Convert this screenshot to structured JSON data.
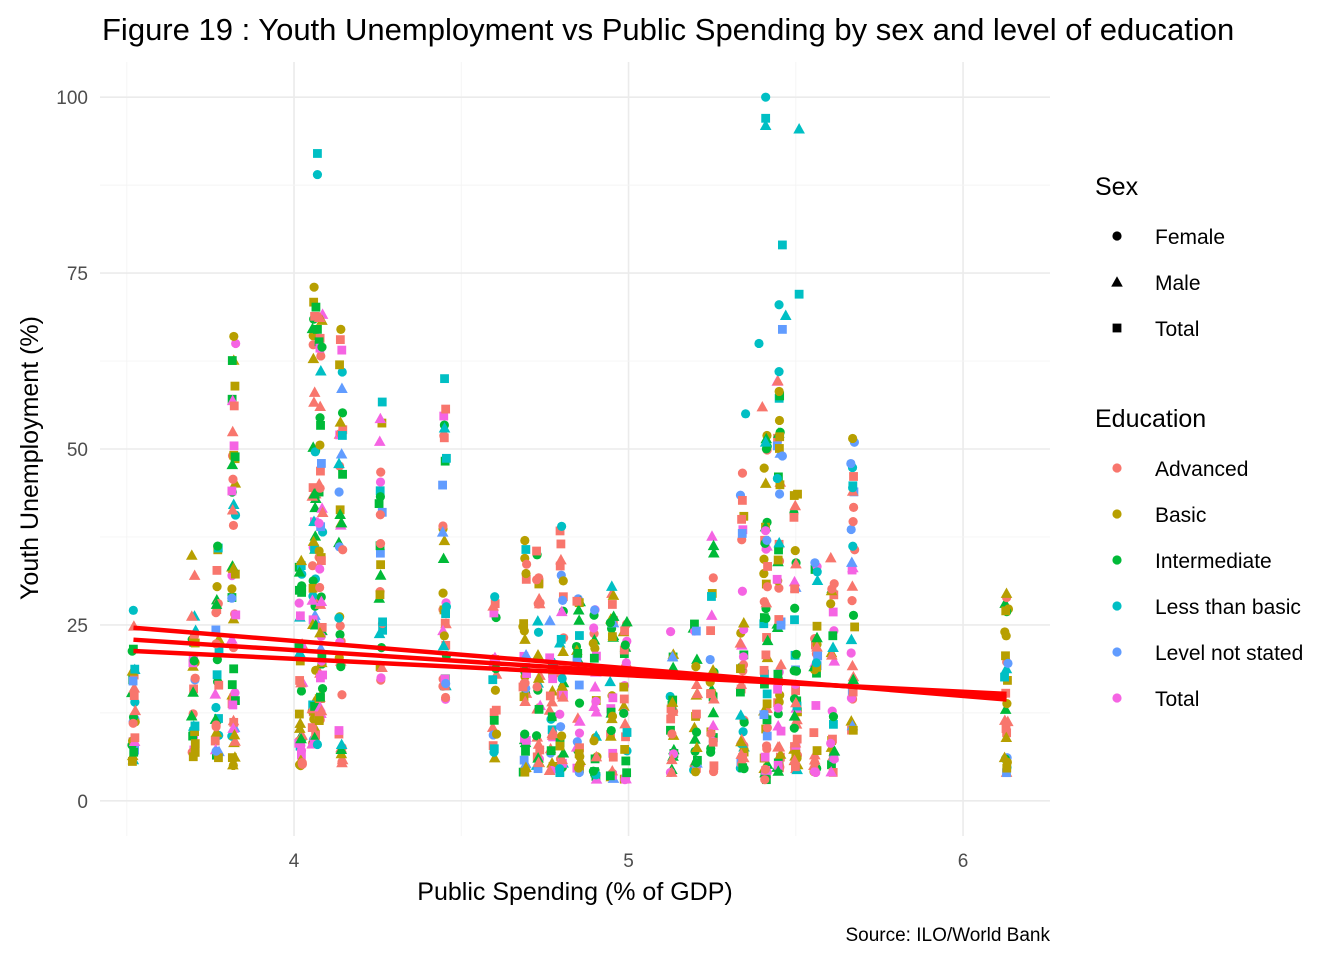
{
  "chart_data": {
    "type": "scatter",
    "title": "Figure 19 : Youth Unemployment vs Public Spending by sex and level of education",
    "xlabel": "Public Spending (% of GDP)",
    "ylabel": "Youth Unemployment (%)",
    "caption": "Source: ILO/World Bank",
    "xlim": [
      3.42,
      6.26
    ],
    "ylim": [
      -5,
      105
    ],
    "x_ticks": [
      4,
      5,
      6
    ],
    "y_ticks": [
      0,
      25,
      50,
      75,
      100
    ],
    "grid": true,
    "legend_placement": "right",
    "legends": [
      {
        "title": "Sex",
        "kind": "shape",
        "entries": [
          {
            "label": "Female",
            "shape": "circle"
          },
          {
            "label": "Male",
            "shape": "triangle"
          },
          {
            "label": "Total",
            "shape": "square"
          }
        ]
      },
      {
        "title": "Education",
        "kind": "color",
        "entries": [
          {
            "label": "Advanced",
            "color": "#F8766D"
          },
          {
            "label": "Basic",
            "color": "#B79F00"
          },
          {
            "label": "Intermediate",
            "color": "#00BA38"
          },
          {
            "label": "Less than basic",
            "color": "#00BFC4"
          },
          {
            "label": "Level not stated",
            "color": "#619CFF"
          },
          {
            "label": "Total",
            "color": "#F564E3"
          }
        ]
      }
    ],
    "trend_lines": {
      "color": "#FF0000",
      "lines": [
        {
          "sex": "Female",
          "x": [
            3.52,
            6.13
          ],
          "y": [
            24.6,
            14.4
          ]
        },
        {
          "sex": "Male",
          "x": [
            3.52,
            6.13
          ],
          "y": [
            22.9,
            14.8
          ]
        },
        {
          "sex": "Total",
          "x": [
            3.52,
            6.13
          ],
          "y": [
            21.3,
            15.2
          ]
        }
      ]
    },
    "groups": [
      {
        "x": 3.52,
        "min": 5,
        "max": 28,
        "n": 30
      },
      {
        "x": 3.7,
        "min": 6,
        "max": 36,
        "n": 32
      },
      {
        "x": 3.77,
        "min": 6,
        "max": 37,
        "n": 32
      },
      {
        "x": 3.82,
        "min": 5,
        "max": 66,
        "n": 55
      },
      {
        "x": 4.02,
        "min": 5,
        "max": 35,
        "n": 40
      },
      {
        "x": 4.06,
        "min": 8,
        "max": 73,
        "n": 60
      },
      {
        "x": 4.08,
        "min": 10,
        "max": 72,
        "n": 55
      },
      {
        "x": 4.14,
        "min": 5,
        "max": 67,
        "n": 45
      },
      {
        "x": 4.26,
        "min": 16,
        "max": 57,
        "n": 28
      },
      {
        "x": 4.45,
        "min": 14,
        "max": 60,
        "n": 35
      },
      {
        "x": 4.6,
        "min": 6,
        "max": 29,
        "n": 22
      },
      {
        "x": 4.69,
        "min": 4,
        "max": 37,
        "n": 38
      },
      {
        "x": 4.73,
        "min": 4,
        "max": 36,
        "n": 32
      },
      {
        "x": 4.77,
        "min": 4,
        "max": 27,
        "n": 28
      },
      {
        "x": 4.8,
        "min": 4,
        "max": 39,
        "n": 35
      },
      {
        "x": 4.85,
        "min": 4,
        "max": 30,
        "n": 30
      },
      {
        "x": 4.9,
        "min": 3,
        "max": 28,
        "n": 28
      },
      {
        "x": 4.95,
        "min": 3,
        "max": 31,
        "n": 32
      },
      {
        "x": 4.99,
        "min": 3,
        "max": 27,
        "n": 28
      },
      {
        "x": 5.13,
        "min": 4,
        "max": 25,
        "n": 24
      },
      {
        "x": 5.2,
        "min": 4,
        "max": 26,
        "n": 25
      },
      {
        "x": 5.25,
        "min": 4,
        "max": 39,
        "n": 28
      },
      {
        "x": 5.34,
        "min": 4,
        "max": 50,
        "n": 40
      },
      {
        "x": 5.41,
        "min": 3,
        "max": 55,
        "n": 60
      },
      {
        "x": 5.45,
        "min": 4,
        "max": 60,
        "n": 55
      },
      {
        "x": 5.5,
        "min": 4,
        "max": 45,
        "n": 45
      },
      {
        "x": 5.56,
        "min": 4,
        "max": 37,
        "n": 32
      },
      {
        "x": 5.61,
        "min": 4,
        "max": 38,
        "n": 30
      },
      {
        "x": 5.67,
        "min": 10,
        "max": 51,
        "n": 32
      },
      {
        "x": 6.13,
        "min": 4,
        "max": 29,
        "n": 30
      }
    ],
    "highlights": [
      {
        "x": 4.07,
        "y": 92,
        "sex": "Total",
        "education": "Less than basic"
      },
      {
        "x": 4.07,
        "y": 89,
        "sex": "Female",
        "education": "Less than basic"
      },
      {
        "x": 4.06,
        "y": 73,
        "sex": "Female",
        "education": "Basic"
      },
      {
        "x": 4.07,
        "y": 67,
        "sex": "Total",
        "education": "Intermediate"
      },
      {
        "x": 4.14,
        "y": 67,
        "sex": "Female",
        "education": "Basic"
      },
      {
        "x": 3.82,
        "y": 66,
        "sex": "Female",
        "education": "Basic"
      },
      {
        "x": 4.07,
        "y": 8,
        "sex": "Female",
        "education": "Less than basic"
      },
      {
        "x": 4.45,
        "y": 60,
        "sex": "Total",
        "education": "Less than basic"
      },
      {
        "x": 4.45,
        "y": 53,
        "sex": "Male",
        "education": "Less than basic"
      },
      {
        "x": 5.41,
        "y": 100,
        "sex": "Female",
        "education": "Less than basic"
      },
      {
        "x": 5.41,
        "y": 97,
        "sex": "Total",
        "education": "Less than basic"
      },
      {
        "x": 5.41,
        "y": 96,
        "sex": "Male",
        "education": "Less than basic"
      },
      {
        "x": 5.51,
        "y": 95.5,
        "sex": "Male",
        "education": "Less than basic"
      },
      {
        "x": 5.46,
        "y": 79,
        "sex": "Total",
        "education": "Less than basic"
      },
      {
        "x": 5.51,
        "y": 72,
        "sex": "Total",
        "education": "Less than basic"
      },
      {
        "x": 5.45,
        "y": 70.5,
        "sex": "Female",
        "education": "Less than basic"
      },
      {
        "x": 5.47,
        "y": 69,
        "sex": "Male",
        "education": "Less than basic"
      },
      {
        "x": 5.46,
        "y": 67,
        "sex": "Total",
        "education": "Level not stated"
      },
      {
        "x": 5.39,
        "y": 65,
        "sex": "Female",
        "education": "Less than basic"
      },
      {
        "x": 5.45,
        "y": 61,
        "sex": "Female",
        "education": "Less than basic"
      },
      {
        "x": 5.4,
        "y": 56,
        "sex": "Male",
        "education": "Advanced"
      },
      {
        "x": 5.35,
        "y": 55,
        "sex": "Female",
        "education": "Less than basic"
      },
      {
        "x": 5.41,
        "y": 51,
        "sex": "Male",
        "education": "Less than basic"
      },
      {
        "x": 5.46,
        "y": 49,
        "sex": "Female",
        "education": "Level not stated"
      },
      {
        "x": 5.67,
        "y": 51.5,
        "sex": "Female",
        "education": "Basic"
      },
      {
        "x": 5.67,
        "y": 44.5,
        "sex": "Female",
        "education": "Less than basic"
      },
      {
        "x": 5.34,
        "y": 38,
        "sex": "Total",
        "education": "Level not stated"
      },
      {
        "x": 4.8,
        "y": 39,
        "sex": "Female",
        "education": "Less than basic"
      },
      {
        "x": 4.95,
        "y": 30.5,
        "sex": "Male",
        "education": "Less than basic"
      },
      {
        "x": 4.6,
        "y": 29,
        "sex": "Female",
        "education": "Less than basic"
      },
      {
        "x": 6.13,
        "y": 29.5,
        "sex": "Male",
        "education": "Basic"
      },
      {
        "x": 4.69,
        "y": 37,
        "sex": "Female",
        "education": "Basic"
      }
    ]
  }
}
